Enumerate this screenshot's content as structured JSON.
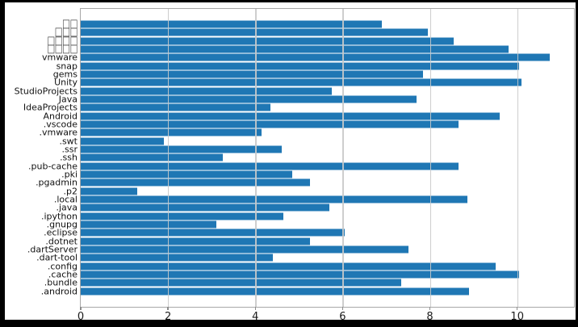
{
  "chart_data": {
    "type": "bar",
    "orientation": "horizontal",
    "title": "",
    "xlabel": "",
    "ylabel": "",
    "categories": [
      "□□",
      "□□□",
      "□□□□",
      "□□□□",
      "vmware",
      "snap",
      "gems",
      "Unity",
      "StudioProjects",
      "Java",
      "IdeaProjects",
      "Android",
      ".vscode",
      ".vmware",
      ".swt",
      ".ssr",
      ".ssh",
      ".pub-cache",
      ".pki",
      ".pgadmin",
      ".p2",
      ".local",
      ".java",
      ".ipython",
      ".gnupg",
      ".eclipse",
      ".dotnet",
      ".dartServer",
      ".dart-tool",
      ".config",
      ".cache",
      ".bundle",
      ".android"
    ],
    "values": [
      6.9,
      7.95,
      8.55,
      9.8,
      10.75,
      10.05,
      7.85,
      10.1,
      5.75,
      7.7,
      4.35,
      9.6,
      8.65,
      4.15,
      1.9,
      4.6,
      3.25,
      8.65,
      4.85,
      5.25,
      1.3,
      8.85,
      5.7,
      4.65,
      3.1,
      6.05,
      5.25,
      7.5,
      4.4,
      9.5,
      10.05,
      7.35,
      8.9
    ],
    "missing_glyph_rows": [
      0,
      1,
      2,
      3
    ],
    "xtick_labels": [
      "0",
      "2",
      "4",
      "6",
      "8",
      "10"
    ],
    "xtick_values": [
      0,
      2,
      4,
      6,
      8,
      10
    ],
    "xlim": [
      0,
      11.3
    ],
    "grid": "vertical",
    "legend": "none",
    "bar_color": "#1f77b4"
  },
  "figure_style": {
    "frame_color": "#000000",
    "figure_background": "#ffffff",
    "spine_color": "#a8a8a8",
    "grid_color": "#c9c9c9",
    "tick_color": "#8c8c8c",
    "tick_label_color": "#1a1a1a",
    "ylabel_color": "#111111"
  }
}
